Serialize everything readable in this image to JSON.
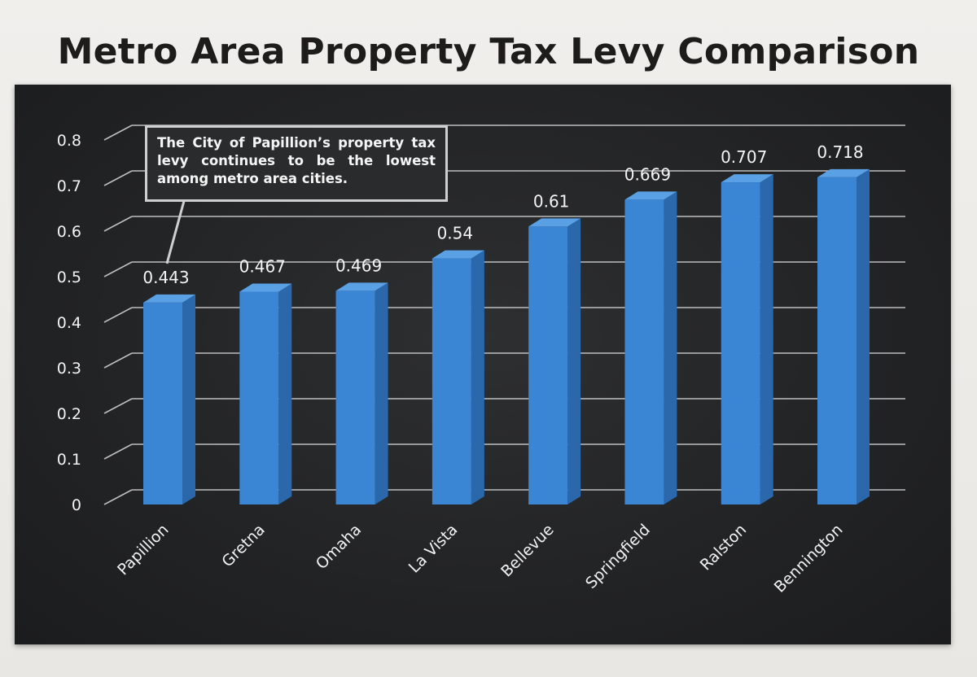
{
  "chart_data": {
    "type": "bar",
    "title": "Metro Area Property Tax Levy Comparison",
    "categories": [
      "Papillion",
      "Gretna",
      "Omaha",
      "La Vista",
      "Bellevue",
      "Springfield",
      "Ralston",
      "Bennington"
    ],
    "values": [
      0.443,
      0.467,
      0.469,
      0.54,
      0.61,
      0.669,
      0.707,
      0.718
    ],
    "value_labels": [
      "0.443",
      "0.467",
      "0.469",
      "0.54",
      "0.61",
      "0.669",
      "0.707",
      "0.718"
    ],
    "yticks": [
      "0",
      "0.1",
      "0.2",
      "0.3",
      "0.4",
      "0.5",
      "0.6",
      "0.7",
      "0.8"
    ],
    "ylim": [
      0,
      0.8
    ],
    "xlabel": "",
    "ylabel": "",
    "grid": true,
    "annotation": "The City of Papillion’s property tax levy continues to be the lowest among metro area cities.",
    "colors": {
      "bar_front": "#3a86d4",
      "bar_side": "#2a68ab",
      "bar_top": "#5aa0e4",
      "background": "#232426",
      "grid": "#d9d9d9"
    }
  }
}
